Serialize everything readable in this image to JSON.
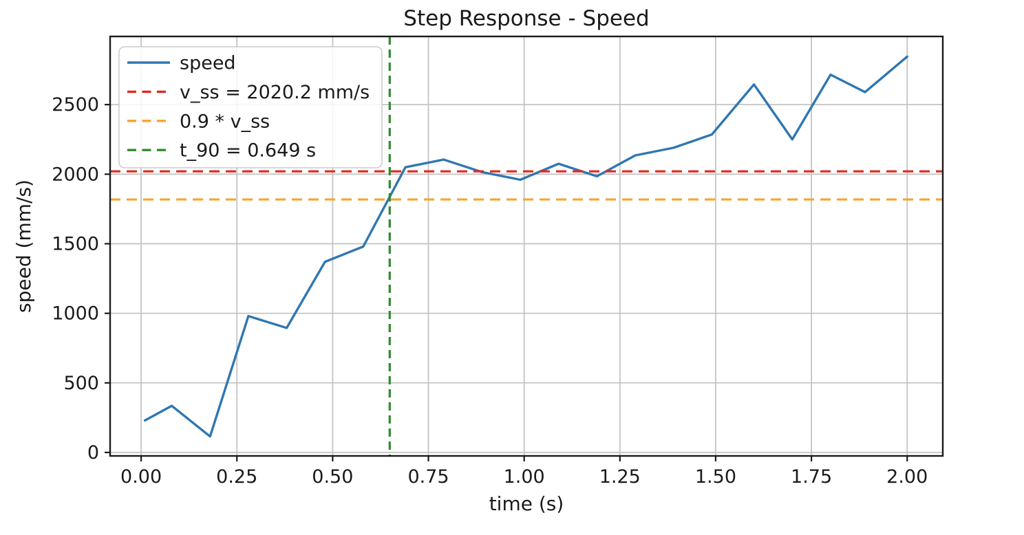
{
  "chart_data": {
    "type": "line",
    "title": "Step Response - Speed",
    "xlabel": "time (s)",
    "ylabel": "speed (mm/s)",
    "xlim": [
      -0.081,
      2.093
    ],
    "ylim": [
      -25,
      2990
    ],
    "grid": true,
    "legend_position": "upper left",
    "xticks": {
      "values": [
        0,
        0.25,
        0.5,
        0.75,
        1.0,
        1.25,
        1.5,
        1.75,
        2.0
      ],
      "labels": [
        "0.00",
        "0.25",
        "0.50",
        "0.75",
        "1.00",
        "1.25",
        "1.50",
        "1.75",
        "2.00"
      ]
    },
    "yticks": {
      "values": [
        0,
        500,
        1000,
        1500,
        2000,
        2500
      ],
      "labels": [
        "0",
        "500",
        "1000",
        "1500",
        "2000",
        "2500"
      ]
    },
    "series": [
      {
        "name": "speed",
        "kind": "line",
        "linestyle": "solid",
        "color": "#2f77b2",
        "x": [
          0.01,
          0.08,
          0.18,
          0.28,
          0.38,
          0.48,
          0.58,
          0.69,
          0.79,
          0.89,
          0.99,
          1.09,
          1.19,
          1.29,
          1.39,
          1.49,
          1.6,
          1.7,
          1.8,
          1.89,
          2.0
        ],
        "y": [
          230,
          335,
          115,
          980,
          895,
          1370,
          1480,
          2050,
          2105,
          2015,
          1960,
          2075,
          1985,
          2135,
          2190,
          2285,
          2645,
          2250,
          2715,
          2590,
          2845
        ]
      },
      {
        "name": "v_ss = 2020.2 mm/s",
        "kind": "hline",
        "linestyle": "dashed",
        "color": "#e0291f",
        "value": 2020.2
      },
      {
        "name": "0.9 * v_ss",
        "kind": "hline",
        "linestyle": "dashed",
        "color": "#f8a42c",
        "value": 1818.2
      },
      {
        "name": "t_90 = 0.649 s",
        "kind": "vline",
        "linestyle": "dashed",
        "color": "#2e8b2e",
        "value": 0.649
      }
    ],
    "colors": {
      "grid": "#c4c4c4",
      "spine": "#1a1a1a",
      "text": "#1a1a1a",
      "legend_border": "#cccccc",
      "legend_bg": "#ffffff"
    }
  }
}
